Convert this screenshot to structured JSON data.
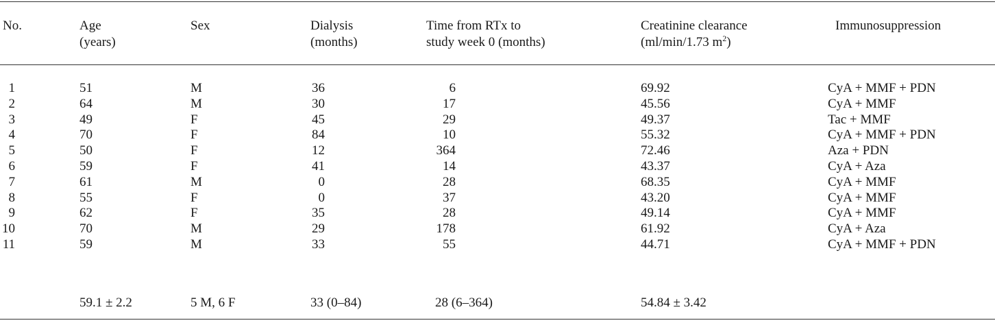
{
  "headers": {
    "no": "No.",
    "age": [
      "Age",
      "(years)"
    ],
    "sex": "Sex",
    "dialysis": [
      "Dialysis",
      "(months)"
    ],
    "time": [
      "Time from RTx to",
      "study week 0 (months)"
    ],
    "creatinine": [
      "Creatinine clearance",
      "(ml/min/1.73 m",
      "2",
      ")"
    ],
    "immuno": "Immunosuppression"
  },
  "rows": [
    {
      "no": "1",
      "age": "51",
      "sex": "M",
      "dialysis": "36",
      "time": "6",
      "creatinine": "69.92",
      "immuno": "CyA + MMF + PDN"
    },
    {
      "no": "2",
      "age": "64",
      "sex": "M",
      "dialysis": "30",
      "time": "17",
      "creatinine": "45.56",
      "immuno": "CyA + MMF"
    },
    {
      "no": "3",
      "age": "49",
      "sex": "F",
      "dialysis": "45",
      "time": "29",
      "creatinine": "49.37",
      "immuno": "Tac + MMF"
    },
    {
      "no": "4",
      "age": "70",
      "sex": "F",
      "dialysis": "84",
      "time": "10",
      "creatinine": "55.32",
      "immuno": "CyA + MMF + PDN"
    },
    {
      "no": "5",
      "age": "50",
      "sex": "F",
      "dialysis": "12",
      "time": "364",
      "creatinine": "72.46",
      "immuno": "Aza + PDN"
    },
    {
      "no": "6",
      "age": "59",
      "sex": "F",
      "dialysis": "41",
      "time": "14",
      "creatinine": "43.37",
      "immuno": "CyA + Aza"
    },
    {
      "no": "7",
      "age": "61",
      "sex": "M",
      "dialysis": "0",
      "time": "28",
      "creatinine": "68.35",
      "immuno": "CyA + MMF"
    },
    {
      "no": "8",
      "age": "55",
      "sex": "F",
      "dialysis": "0",
      "time": "37",
      "creatinine": "43.20",
      "immuno": "CyA + MMF"
    },
    {
      "no": "9",
      "age": "62",
      "sex": "F",
      "dialysis": "35",
      "time": "28",
      "creatinine": "49.14",
      "immuno": "CyA + MMF"
    },
    {
      "no": "10",
      "age": "70",
      "sex": "M",
      "dialysis": "29",
      "time": "178",
      "creatinine": "61.92",
      "immuno": "CyA + Aza"
    },
    {
      "no": "11",
      "age": "59",
      "sex": "M",
      "dialysis": "33",
      "time": "55",
      "creatinine": "44.71",
      "immuno": "CyA + MMF + PDN"
    }
  ],
  "summary": {
    "age": "59.1 ± 2.2",
    "sex": "5 M, 6 F",
    "dialysis": "33 (0–84)",
    "time": "28 (6–364)",
    "creatinine": "54.84 ± 3.42"
  }
}
